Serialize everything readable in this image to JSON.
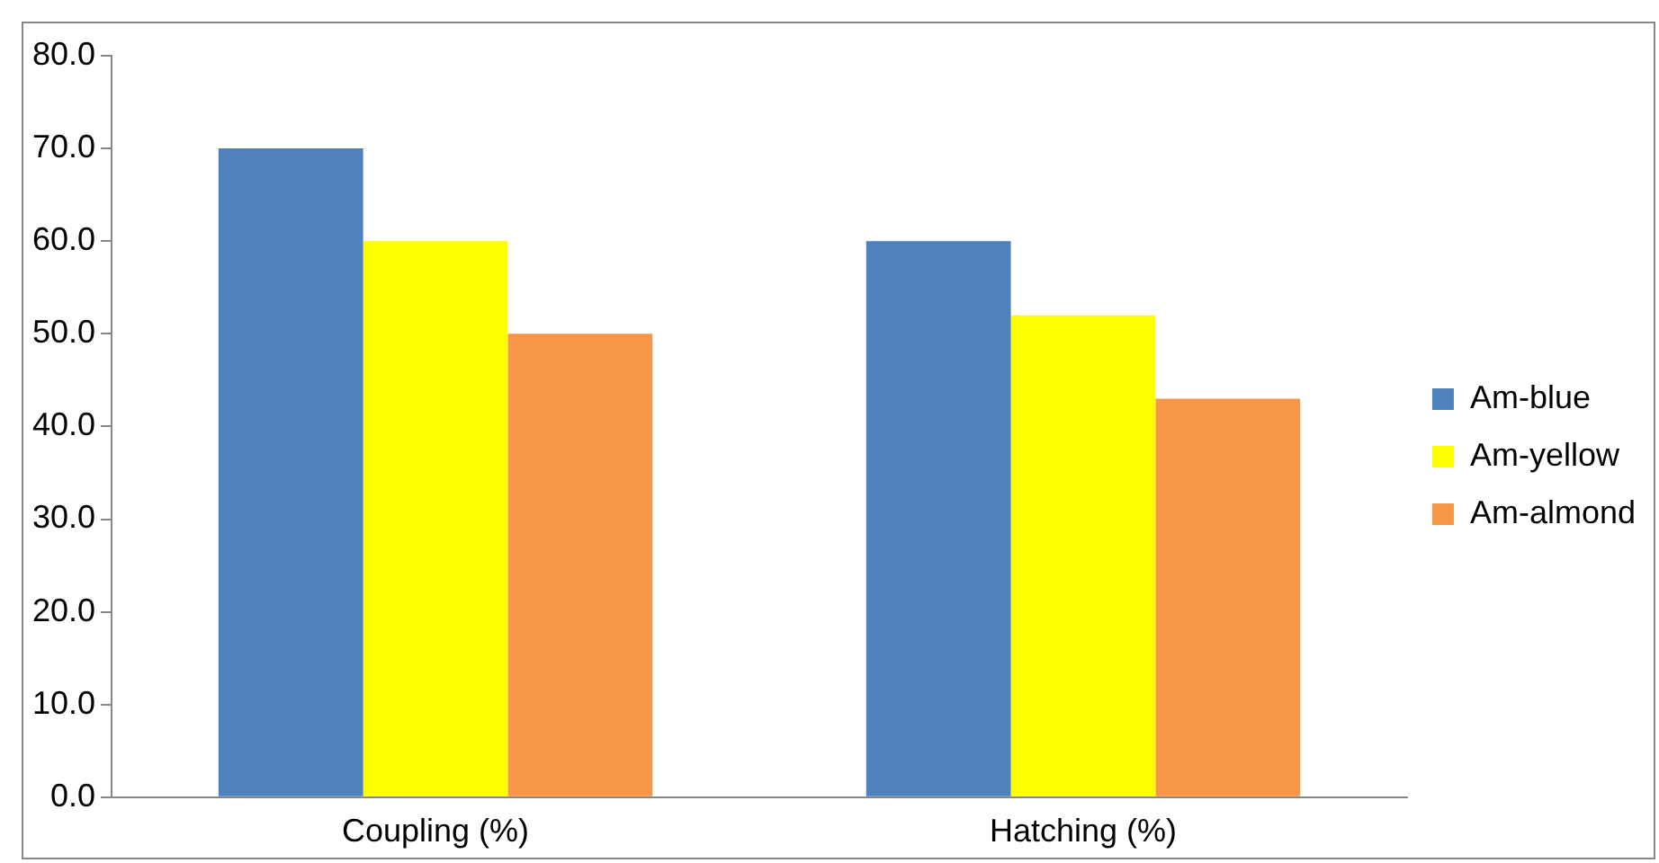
{
  "chart_data": {
    "type": "bar",
    "categories": [
      "Coupling (%)",
      "Hatching (%)"
    ],
    "series": [
      {
        "name": "Am-blue",
        "color": "#4f81bd",
        "values": [
          70,
          60
        ]
      },
      {
        "name": "Am-yellow",
        "color": "#ffff00",
        "values": [
          60,
          52
        ]
      },
      {
        "name": "Am-almond",
        "color": "#f79646",
        "values": [
          50,
          43
        ]
      }
    ],
    "ylim": [
      0,
      80
    ],
    "yticks": [
      {
        "value": 0,
        "label": "0.0"
      },
      {
        "value": 10,
        "label": "10.0"
      },
      {
        "value": 20,
        "label": "20.0"
      },
      {
        "value": 30,
        "label": "30.0"
      },
      {
        "value": 40,
        "label": "40.0"
      },
      {
        "value": 50,
        "label": "50.0"
      },
      {
        "value": 60,
        "label": "60.0"
      },
      {
        "value": 70,
        "label": "70.0"
      },
      {
        "value": 80,
        "label": "80.0"
      }
    ],
    "grid": false,
    "legend": "right"
  }
}
